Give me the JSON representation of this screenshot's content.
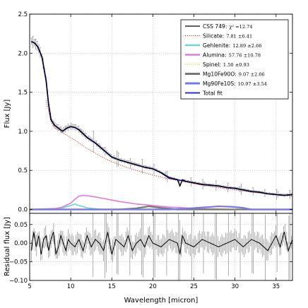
{
  "chart_data": [
    {
      "type": "line",
      "panel": "main",
      "xlabel": "",
      "ylabel": "Flux [Jy]",
      "xlim": [
        5,
        37
      ],
      "ylim": [
        -0.05,
        2.5
      ],
      "xticks": [
        5,
        10,
        15,
        20,
        25,
        30,
        35
      ],
      "yticks": [
        0.0,
        0.5,
        1.0,
        1.5,
        2.0,
        2.5
      ],
      "ytick_labels": [
        "0.0",
        "0.5",
        "1.0",
        "1.5",
        "2.0",
        "2.5"
      ],
      "grid": true,
      "legend_position": "top-right",
      "series": [
        {
          "name": "CSS 749:",
          "stat": "χ² =12.74",
          "style": "solid",
          "color": "#000000",
          "x": [
            5.2,
            5.6,
            6.0,
            6.5,
            7.0,
            7.3,
            7.6,
            8.0,
            8.5,
            9.0,
            9.5,
            10.0,
            10.5,
            11.0,
            12.0,
            13.0,
            14.0,
            15.0,
            16.0,
            17.0,
            18.0,
            19.0,
            20.0,
            21.0,
            22.0,
            23.0,
            23.3,
            23.6,
            24.0,
            25.0,
            26.0,
            27.0,
            28.0,
            29.0,
            30.0,
            31.0,
            32.0,
            33.0,
            34.0,
            35.0,
            36.0,
            37.0
          ],
          "y": [
            2.15,
            2.13,
            2.08,
            1.95,
            1.65,
            1.35,
            1.15,
            1.08,
            1.04,
            1.0,
            1.04,
            1.06,
            1.05,
            1.02,
            0.92,
            0.85,
            0.76,
            0.67,
            0.63,
            0.6,
            0.57,
            0.54,
            0.52,
            0.47,
            0.4,
            0.38,
            0.3,
            0.38,
            0.36,
            0.34,
            0.32,
            0.31,
            0.3,
            0.28,
            0.27,
            0.25,
            0.23,
            0.22,
            0.2,
            0.19,
            0.18,
            0.19
          ]
        },
        {
          "name": "Silicate:",
          "stat": "7.81 ±6.41",
          "style": "dotted",
          "color": "#d62728",
          "x": [
            7.0,
            7.6,
            8.0,
            9.0,
            10.0,
            11.0,
            12.0,
            13.0,
            14.0,
            15.0,
            16.0,
            17.0,
            18.0,
            19.0,
            20.0,
            22.0,
            24.0,
            26.0,
            28.0,
            30.0,
            32.0,
            34.0,
            36.0,
            37.0
          ],
          "y": [
            1.4,
            1.12,
            1.05,
            0.98,
            0.92,
            0.85,
            0.78,
            0.72,
            0.66,
            0.61,
            0.57,
            0.53,
            0.5,
            0.47,
            0.44,
            0.39,
            0.35,
            0.31,
            0.28,
            0.25,
            0.22,
            0.2,
            0.18,
            0.17
          ]
        },
        {
          "name": "Gehlenite:",
          "stat": "12.89 ±2.66",
          "style": "solid",
          "color": "#70d4d4",
          "x": [
            5.0,
            8.0,
            9.0,
            10.0,
            10.5,
            11.0,
            12.0,
            13.0,
            14.0,
            37.0
          ],
          "y": [
            0.0,
            0.01,
            0.02,
            0.05,
            0.07,
            0.05,
            0.02,
            0.01,
            0.0,
            0.0
          ]
        },
        {
          "name": "Alumina:",
          "stat": "57.76 ±10.78",
          "style": "solid",
          "color": "#e07ae0",
          "x": [
            5.0,
            8.0,
            9.0,
            10.0,
            10.5,
            11.0,
            11.5,
            12.0,
            13.0,
            14.0,
            15.0,
            16.0,
            18.0,
            20.0,
            22.0,
            24.0,
            26.0,
            28.0,
            30.0,
            37.0
          ],
          "y": [
            0.0,
            0.01,
            0.03,
            0.08,
            0.13,
            0.17,
            0.18,
            0.175,
            0.16,
            0.14,
            0.12,
            0.1,
            0.07,
            0.05,
            0.03,
            0.02,
            0.01,
            0.005,
            0.0,
            0.0
          ]
        },
        {
          "name": "Spinel:",
          "stat": "1.50 ±0.93",
          "style": "dotted",
          "color": "#d4d400",
          "x": [
            5.0,
            13.0,
            15.0,
            17.0,
            19.0,
            21.0,
            23.0,
            37.0
          ],
          "y": [
            0.0,
            0.0,
            0.005,
            0.012,
            0.015,
            0.01,
            0.0,
            0.0
          ]
        },
        {
          "name": "Mg10Fe90O:",
          "stat": "9.07 ±2.06",
          "style": "solid",
          "color": "#777777",
          "x": [
            5.0,
            16.0,
            18.0,
            19.5,
            21.0,
            23.0,
            37.0
          ],
          "y": [
            0.0,
            0.0,
            0.015,
            0.04,
            0.02,
            0.0,
            0.0
          ]
        },
        {
          "name": "Mg90Fe10S:",
          "stat": "10.97 ±3.54",
          "style": "solid",
          "color": "#7878ee",
          "x": [
            5.0,
            22.0,
            24.0,
            26.0,
            28.0,
            29.5,
            31.0,
            32.0,
            37.0
          ],
          "y": [
            0.0,
            0.0,
            0.01,
            0.025,
            0.04,
            0.035,
            0.02,
            0.0,
            0.0
          ]
        },
        {
          "name": "Total fit",
          "stat": "",
          "style": "solid",
          "color": "#2b2bd8",
          "x": [
            5.2,
            5.6,
            6.0,
            6.5,
            7.0,
            7.3,
            7.6,
            8.0,
            8.5,
            9.0,
            9.5,
            10.0,
            10.5,
            11.0,
            12.0,
            13.0,
            14.0,
            15.0,
            16.0,
            17.0,
            18.0,
            19.0,
            20.0,
            21.0,
            22.0,
            23.0,
            24.0,
            25.0,
            26.0,
            27.0,
            28.0,
            29.0,
            30.0,
            31.0,
            32.0,
            33.0,
            34.0,
            35.0,
            36.0,
            37.0
          ],
          "y": [
            2.15,
            2.13,
            2.08,
            1.95,
            1.65,
            1.35,
            1.15,
            1.08,
            1.04,
            1.0,
            1.04,
            1.06,
            1.05,
            1.02,
            0.92,
            0.85,
            0.76,
            0.67,
            0.63,
            0.6,
            0.57,
            0.54,
            0.52,
            0.47,
            0.41,
            0.38,
            0.36,
            0.34,
            0.32,
            0.31,
            0.3,
            0.28,
            0.27,
            0.25,
            0.23,
            0.22,
            0.2,
            0.19,
            0.18,
            0.19
          ]
        }
      ]
    },
    {
      "type": "line",
      "panel": "residual",
      "xlabel": "Wavelength [micron]",
      "ylabel": "Residual flux [Jy]",
      "xlim": [
        5,
        37
      ],
      "ylim": [
        -0.1,
        0.08
      ],
      "xticks": [
        5,
        10,
        15,
        20,
        25,
        30,
        35
      ],
      "yticks": [
        -0.1,
        -0.05,
        0.0,
        0.05
      ],
      "ytick_labels": [
        "−0.10",
        "−0.05",
        "0.00",
        "0.05"
      ],
      "grid": true,
      "series": [
        {
          "style": "solid",
          "color": "#000000",
          "x": [
            5.2,
            5.5,
            5.8,
            6.1,
            6.4,
            6.7,
            7.0,
            7.3,
            7.6,
            7.9,
            8.2,
            8.5,
            8.8,
            9.1,
            9.4,
            9.7,
            10.0,
            10.5,
            11.0,
            11.5,
            12.0,
            12.5,
            13.0,
            13.5,
            14.0,
            14.5,
            15.0,
            15.5,
            16.0,
            16.5,
            17.0,
            17.5,
            18.0,
            18.5,
            19.0,
            19.5,
            20.0,
            21.0,
            22.0,
            23.0,
            23.3,
            23.6,
            24.0,
            25.0,
            26.0,
            27.0,
            28.0,
            29.0,
            30.0,
            31.0,
            32.0,
            33.0,
            34.0,
            35.0,
            35.5,
            36.0,
            36.5,
            37.0
          ],
          "y": [
            -0.02,
            0.03,
            -0.01,
            0.02,
            -0.03,
            0.01,
            0.02,
            -0.02,
            0.01,
            0.03,
            -0.03,
            -0.01,
            0.02,
            0.0,
            -0.02,
            0.01,
            0.0,
            -0.01,
            0.01,
            -0.02,
            0.02,
            -0.01,
            0.01,
            0.0,
            -0.02,
            0.03,
            -0.03,
            0.01,
            0.0,
            -0.01,
            0.02,
            -0.02,
            0.0,
            0.01,
            -0.01,
            0.02,
            0.0,
            -0.01,
            0.01,
            0.0,
            -0.03,
            0.02,
            0.0,
            -0.01,
            0.01,
            0.0,
            -0.01,
            0.0,
            0.01,
            -0.01,
            0.01,
            0.0,
            -0.02,
            0.02,
            -0.01,
            0.03,
            -0.02,
            0.01
          ]
        }
      ]
    }
  ]
}
